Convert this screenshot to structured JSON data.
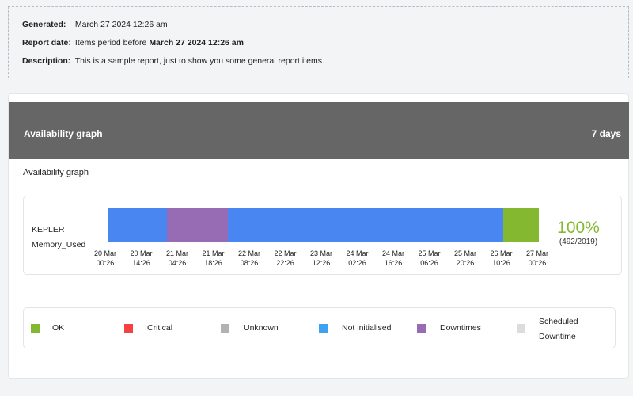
{
  "report": {
    "generated_label": "Generated:",
    "generated_value": "March 27 2024 12:26 am",
    "report_date_label": "Report date:",
    "report_date_prefix": "Items period before",
    "report_date_value": "March 27 2024 12:26 am",
    "description_label": "Description:",
    "description_value": "This is a sample report, just to show you some general report items."
  },
  "card": {
    "title": "Availability graph",
    "period": "7 days",
    "subtitle": "Availability graph"
  },
  "agent": {
    "name": "KEPLER",
    "module": "Memory_Used",
    "percent": "100%",
    "ratio": "(492/2019)"
  },
  "chart_data": {
    "type": "bar",
    "orientation": "horizontal-timeline",
    "ticks": [
      {
        "date": "20 Mar",
        "time": "00:26"
      },
      {
        "date": "20 Mar",
        "time": "14:26"
      },
      {
        "date": "21 Mar",
        "time": "04:26"
      },
      {
        "date": "21 Mar",
        "time": "18:26"
      },
      {
        "date": "22 Mar",
        "time": "08:26"
      },
      {
        "date": "22 Mar",
        "time": "22:26"
      },
      {
        "date": "23 Mar",
        "time": "12:26"
      },
      {
        "date": "24 Mar",
        "time": "02:26"
      },
      {
        "date": "24 Mar",
        "time": "16:26"
      },
      {
        "date": "25 Mar",
        "time": "06:26"
      },
      {
        "date": "25 Mar",
        "time": "20:26"
      },
      {
        "date": "26 Mar",
        "time": "10:26"
      },
      {
        "date": "27 Mar",
        "time": "00:26"
      }
    ],
    "segments": [
      {
        "status": "Not initialised",
        "start": "2024-03-20 00:26",
        "end": "2024-03-20 23:26",
        "color": "#4a86f2"
      },
      {
        "status": "Downtimes",
        "start": "2024-03-20 23:26",
        "end": "2024-03-21 23:26",
        "color": "#976cb4"
      },
      {
        "status": "Not initialised",
        "start": "2024-03-21 23:26",
        "end": "2024-03-26 10:26",
        "color": "#4a86f2"
      },
      {
        "status": "OK",
        "start": "2024-03-26 10:26",
        "end": "2024-03-27 00:26",
        "color": "#84b830"
      }
    ]
  },
  "legend": [
    {
      "label": "OK",
      "color": "#84b830"
    },
    {
      "label": "Critical",
      "color": "#f44242"
    },
    {
      "label": "Unknown",
      "color": "#b2b2b2"
    },
    {
      "label": "Not initialised",
      "color": "#3ea2f3"
    },
    {
      "label": "Downtimes",
      "color": "#976cb4"
    },
    {
      "label": "Scheduled Downtime",
      "color": "#dcdcdc"
    }
  ]
}
